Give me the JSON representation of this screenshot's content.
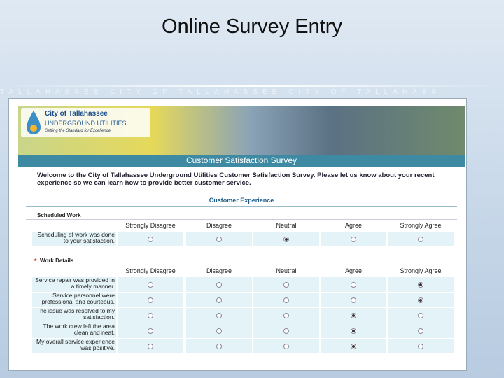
{
  "slide_title": "Online Survey Entry",
  "banner_text": "TALLAHASSEE     CITY OF TALLAHASSEE     CITY OF TALLAHASS",
  "logo": {
    "name": "City of Tallahassee",
    "unit": "UNDERGROUND UTILITIES",
    "tagline": "Setting the Standard for Excellence"
  },
  "survey_title": "Customer Satisfaction Survey",
  "welcome": "Welcome to the City of Tallahassee Underground Utilities Customer Satisfaction Survey. Please let us know about your recent experience so we can learn how to provide better customer service.",
  "section_title": "Customer Experience",
  "sections": [
    {
      "heading": "Scheduled Work",
      "columns": [
        "Strongly Disagree",
        "Disagree",
        "Neutral",
        "Agree",
        "Strongly Agree"
      ],
      "rows": [
        {
          "label": "Scheduling of work was done to your satisfaction.",
          "selected": 2
        }
      ]
    },
    {
      "required": "*",
      "heading": "Work Details",
      "columns": [
        "Strongly Disagree",
        "Disagree",
        "Neutral",
        "Agree",
        "Strongly Agree"
      ],
      "rows": [
        {
          "label": "Service repair was provided in a timely manner.",
          "selected": 4
        },
        {
          "label": "Service personnel were professional and courteous.",
          "selected": 4
        },
        {
          "label": "The issue was resolved to my satisfaction.",
          "selected": 3
        },
        {
          "label": "The work crew left the area clean and neat.",
          "selected": 3
        },
        {
          "label": "My overall service experience was positive.",
          "selected": 3
        }
      ]
    }
  ]
}
